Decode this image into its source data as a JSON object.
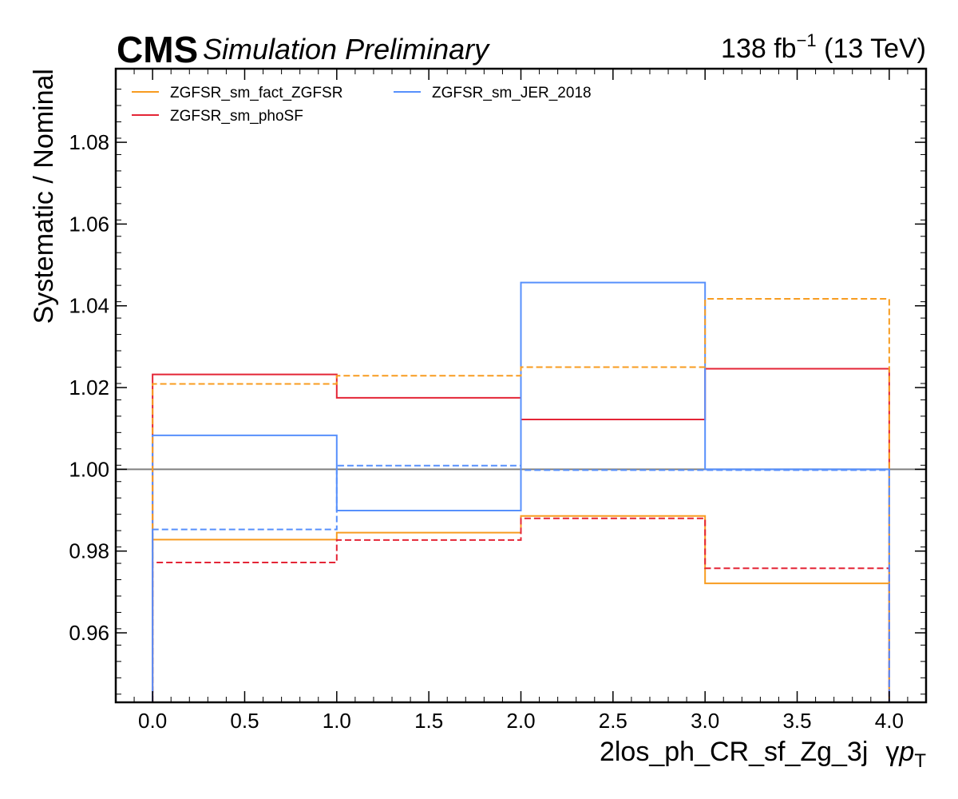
{
  "header": {
    "experiment": "CMS",
    "status": "Simulation Preliminary",
    "lumi_value": "138 fb",
    "lumi_exp": "−1",
    "lumi_energy": " (13 TeV)"
  },
  "chart_data": {
    "type": "line",
    "drawstyle": "step",
    "xlabel_main": "2los_ph_CR_sf_Zg_3j",
    "xlabel_gamma": "γ",
    "xlabel_p": "p",
    "xlabel_sub": "T",
    "ylabel": "Systematic / Nominal",
    "xlim": [
      -0.2,
      4.2
    ],
    "ylim": [
      0.943,
      1.098
    ],
    "xticks": [
      0.0,
      0.5,
      1.0,
      1.5,
      2.0,
      2.5,
      3.0,
      3.5,
      4.0
    ],
    "xtick_labels": [
      "0.0",
      "0.5",
      "1.0",
      "1.5",
      "2.0",
      "2.5",
      "3.0",
      "3.5",
      "4.0"
    ],
    "yticks": [
      0.96,
      0.98,
      1.0,
      1.02,
      1.04,
      1.06,
      1.08
    ],
    "ytick_labels": [
      "0.96",
      "0.98",
      "1.00",
      "1.02",
      "1.04",
      "1.06",
      "1.08"
    ],
    "bin_edges": [
      0,
      1,
      2,
      3,
      4
    ],
    "reference_line": 1.0,
    "reference_color": "#808080",
    "legend_placement": "top-left",
    "series": [
      {
        "name": "ZGFSR_sm_fact_ZGFSR",
        "color": "#f89c20",
        "style": "solid",
        "values": [
          0.9828,
          0.9845,
          0.9886,
          0.9721
        ]
      },
      {
        "name": "ZGFSR_sm_phoSF",
        "color": "#e42536",
        "style": "solid",
        "values": [
          1.0232,
          1.0175,
          1.0122,
          1.0246
        ]
      },
      {
        "name": "ZGFSR_sm_JER_2018",
        "color": "#5790fc",
        "style": "solid",
        "values": [
          1.0083,
          0.9899,
          1.0457,
          1.0
        ]
      },
      {
        "color": "#f89c20",
        "style": "dashed",
        "values": [
          1.0209,
          1.0229,
          1.025,
          1.0417
        ]
      },
      {
        "color": "#e42536",
        "style": "dashed",
        "values": [
          0.9772,
          0.9827,
          0.988,
          0.9758
        ]
      },
      {
        "color": "#5790fc",
        "style": "dashed",
        "values": [
          0.9853,
          1.0009,
          0.9998,
          0.9998
        ]
      }
    ]
  }
}
